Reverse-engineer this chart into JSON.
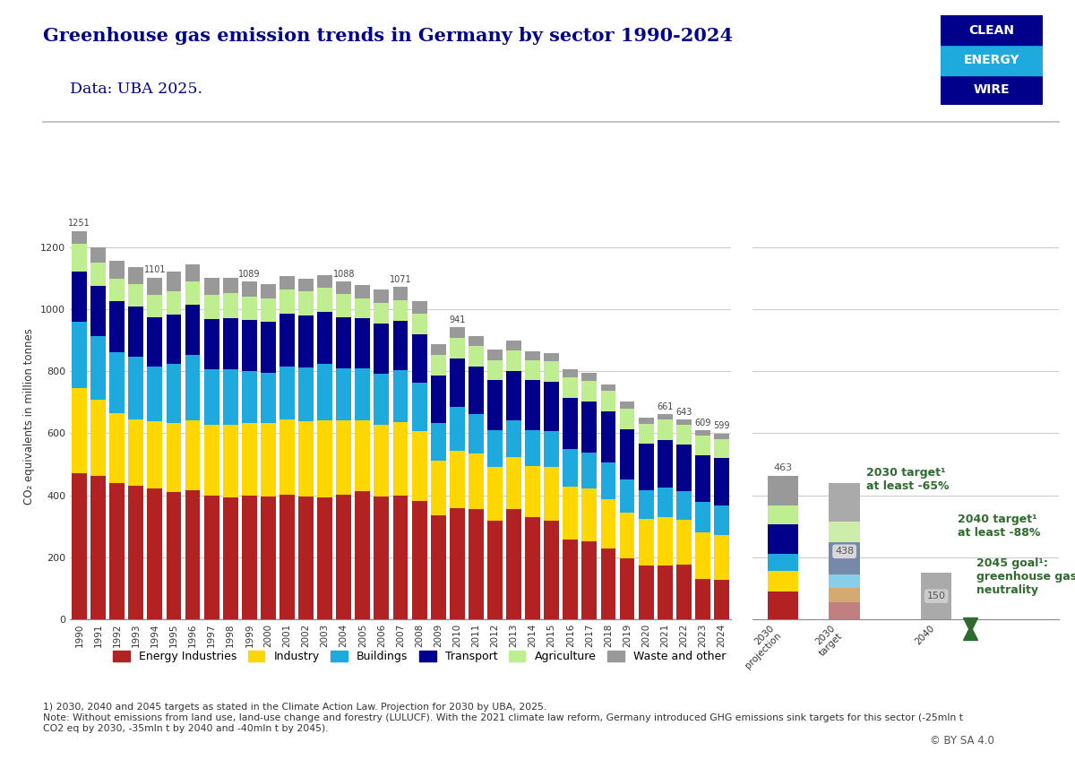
{
  "title": "Greenhouse gas emission trends in Germany by sector 1990-2024",
  "subtitle": "Data: UBA 2025.",
  "ylabel": "CO₂ equivalents in million tonnes",
  "years": [
    1990,
    1991,
    1992,
    1993,
    1994,
    1995,
    1996,
    1997,
    1998,
    1999,
    2000,
    2001,
    2002,
    2003,
    2004,
    2005,
    2006,
    2007,
    2008,
    2009,
    2010,
    2011,
    2012,
    2013,
    2014,
    2015,
    2016,
    2017,
    2018,
    2019,
    2020,
    2021,
    2022,
    2023,
    2024
  ],
  "sectors": {
    "Energy Industries": [
      471,
      461,
      440,
      432,
      421,
      410,
      415,
      398,
      393,
      399,
      396,
      402,
      397,
      393,
      401,
      413,
      395,
      398,
      382,
      334,
      357,
      355,
      318,
      355,
      329,
      319,
      257,
      252,
      228,
      196,
      175,
      174,
      176,
      129,
      127
    ],
    "Industry": [
      273,
      248,
      225,
      213,
      217,
      222,
      226,
      228,
      233,
      233,
      236,
      242,
      242,
      247,
      241,
      228,
      232,
      238,
      224,
      176,
      185,
      179,
      174,
      169,
      165,
      173,
      171,
      170,
      160,
      148,
      149,
      156,
      145,
      150,
      145
    ],
    "Buildings": [
      215,
      205,
      196,
      202,
      178,
      191,
      210,
      181,
      181,
      169,
      162,
      170,
      172,
      183,
      168,
      168,
      165,
      166,
      156,
      124,
      142,
      127,
      119,
      116,
      116,
      114,
      122,
      116,
      119,
      106,
      93,
      96,
      93,
      99,
      95
    ],
    "Transport": [
      163,
      161,
      163,
      161,
      158,
      159,
      163,
      162,
      164,
      163,
      165,
      172,
      169,
      168,
      163,
      161,
      162,
      160,
      157,
      152,
      157,
      155,
      159,
      161,
      160,
      160,
      163,
      165,
      163,
      163,
      148,
      152,
      149,
      151,
      152
    ],
    "Agriculture": [
      88,
      76,
      73,
      71,
      73,
      75,
      76,
      78,
      79,
      77,
      75,
      76,
      77,
      77,
      75,
      65,
      66,
      66,
      66,
      66,
      65,
      65,
      66,
      65,
      66,
      65,
      66,
      66,
      66,
      66,
      66,
      65,
      63,
      63,
      63
    ],
    "Waste and other": [
      41,
      48,
      58,
      55,
      54,
      64,
      55,
      54,
      50,
      48,
      46,
      45,
      40,
      40,
      40,
      43,
      42,
      43,
      40,
      36,
      35,
      33,
      33,
      31,
      28,
      28,
      26,
      25,
      22,
      22,
      20,
      18,
      17,
      17,
      17
    ]
  },
  "totals_labeled_years": [
    1990,
    1994,
    1999,
    2004,
    2007,
    2010,
    2021,
    2022,
    2023,
    2024
  ],
  "bar_colors": {
    "Energy Industries": "#B22222",
    "Industry": "#FFD700",
    "Buildings": "#1EAADC",
    "Transport": "#00008B",
    "Agriculture": "#BFEE90",
    "Waste and other": "#999999"
  },
  "proj_2030_segments": [
    90,
    65,
    55,
    95,
    63,
    95
  ],
  "proj_2030_colors": [
    "#B22222",
    "#FFD700",
    "#1EAADC",
    "#00008B",
    "#BFEE90",
    "#999999"
  ],
  "proj_2030_total_label": "463",
  "tgt_2030_segments": [
    55,
    45,
    45,
    105,
    65,
    123
  ],
  "tgt_2030_colors": [
    "#C08080",
    "#D4AA70",
    "#87CEEB",
    "#7788AA",
    "#CCEEAA",
    "#AAAAAA"
  ],
  "tgt_2030_total": 438,
  "tgt_2040_total": 150,
  "annotation_2030": "2030 target¹\nat least -65%",
  "annotation_2040": "2040 target¹\nat least -88%",
  "annotation_2045": "2045 goal¹:\ngreenhouse gas\nneutrality",
  "footnote_line1": "1) 2030, 2040 and 2045 targets as stated in the Climate Action Law. Projection for 2030 by UBA, 2025.",
  "footnote_line2": "Note: Without emissions from land use, land-use change and forestry (LULUCF). With the 2021 climate law reform, Germany introduced GHG emissions sink targets for this sector (-25mln t",
  "footnote_line3": "CO2 eq by 2030, -35mln t by 2040 and -40mln t by 2045).",
  "legend_labels": [
    "Energy Industries",
    "Industry",
    "Buildings",
    "Transport",
    "Agriculture",
    "Waste and other"
  ],
  "background_color": "#FFFFFF",
  "title_color": "#00008B",
  "subtitle_color": "#00008B",
  "green_color": "#2E6B2E",
  "clew_dark": "#00008B",
  "clew_mid": "#1EAADC"
}
